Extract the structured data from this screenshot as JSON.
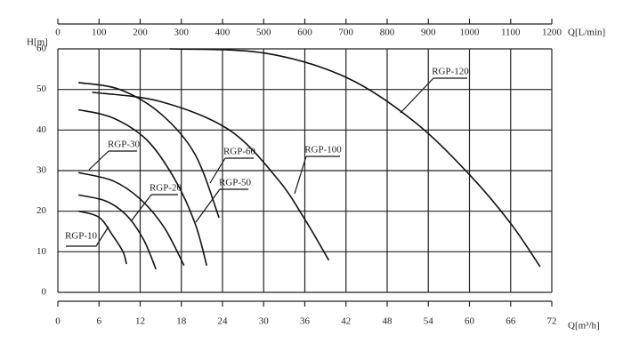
{
  "chart_data": {
    "type": "line",
    "y_label": "H[m]",
    "x_label": "Q[m³/h]",
    "x2_label": "Q[L/min]",
    "xlim": [
      0,
      72
    ],
    "xticks": [
      0,
      6,
      12,
      18,
      24,
      30,
      36,
      42,
      48,
      54,
      60,
      66,
      72
    ],
    "x2lim": [
      0,
      1200
    ],
    "x2ticks": [
      0,
      100,
      200,
      300,
      400,
      500,
      600,
      700,
      800,
      900,
      1000,
      1100,
      1200
    ],
    "ylim": [
      0,
      60
    ],
    "yticks": [
      0,
      10,
      20,
      30,
      40,
      50,
      60
    ],
    "grid": true,
    "series": [
      {
        "name": "RGP-10",
        "color": "#111",
        "x": [
          3,
          6,
          8,
          9.5,
          10
        ],
        "values": [
          20,
          18.5,
          14,
          10,
          7
        ]
      },
      {
        "name": "RGP-20",
        "color": "#111",
        "x": [
          3,
          7,
          10,
          12.5,
          14.3
        ],
        "values": [
          24,
          22.5,
          19,
          13,
          5.7
        ]
      },
      {
        "name": "RGP-30",
        "color": "#111",
        "x": [
          3,
          8,
          12,
          15.5,
          18.4
        ],
        "values": [
          29.5,
          27.5,
          23,
          16,
          6.6
        ]
      },
      {
        "name": "RGP-50",
        "color": "#111",
        "x": [
          3,
          8,
          13,
          17,
          20,
          21.7
        ],
        "values": [
          45,
          43,
          37.5,
          28,
          17,
          6.6
        ]
      },
      {
        "name": "RGP-60",
        "color": "#111",
        "x": [
          3,
          9,
          15,
          20,
          23.5
        ],
        "values": [
          51.7,
          50,
          44,
          34,
          18.4
        ]
      },
      {
        "name": "RGP-100",
        "color": "#111",
        "x": [
          5,
          15,
          25,
          32,
          36,
          39.5
        ],
        "values": [
          49.3,
          47,
          40,
          28,
          18,
          7.9
        ]
      },
      {
        "name": "RGP-120",
        "color": "#111",
        "x": [
          16.3,
          30,
          42,
          52,
          60,
          66,
          70.3
        ],
        "values": [
          60,
          59,
          53,
          42,
          29,
          17,
          6.3
        ]
      }
    ]
  }
}
